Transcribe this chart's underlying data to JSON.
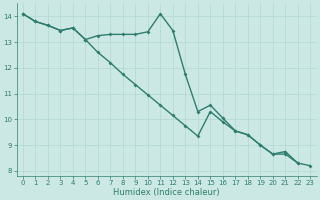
{
  "line1_x": [
    0,
    1,
    2,
    3,
    4,
    5,
    6,
    7,
    8,
    9,
    10,
    11,
    12,
    13,
    14,
    15,
    16,
    17,
    18,
    19,
    20,
    21,
    22,
    23
  ],
  "line1_y": [
    14.1,
    13.8,
    13.65,
    13.45,
    13.55,
    13.1,
    13.25,
    13.3,
    13.3,
    13.3,
    13.4,
    14.1,
    13.45,
    11.75,
    10.3,
    10.55,
    10.05,
    9.55,
    9.4,
    9.0,
    8.65,
    8.75,
    8.3,
    null
  ],
  "line2_x": [
    0,
    1,
    2,
    3,
    4,
    5,
    6,
    7,
    8,
    9,
    10,
    11,
    12,
    13,
    14,
    15,
    16,
    17,
    18,
    19,
    20,
    21,
    22,
    23
  ],
  "line2_y": [
    14.1,
    13.8,
    13.65,
    13.45,
    13.55,
    13.1,
    12.6,
    12.2,
    11.75,
    11.35,
    10.95,
    10.55,
    10.15,
    9.75,
    9.35,
    10.3,
    9.9,
    9.55,
    9.4,
    9.0,
    8.65,
    8.65,
    8.3,
    8.2
  ],
  "line_color": "#2e7d6e",
  "bg_color": "#cce8e4",
  "grid_color": "#b0d8d0",
  "xlabel": "Humidex (Indice chaleur)",
  "xlim": [
    -0.5,
    23.5
  ],
  "ylim": [
    7.8,
    14.5
  ],
  "yticks": [
    8,
    9,
    10,
    11,
    12,
    13,
    14
  ],
  "xticks": [
    0,
    1,
    2,
    3,
    4,
    5,
    6,
    7,
    8,
    9,
    10,
    11,
    12,
    13,
    14,
    15,
    16,
    17,
    18,
    19,
    20,
    21,
    22,
    23
  ],
  "marker": "D",
  "markersize": 2,
  "linewidth": 1.0,
  "title_fontsize": 7,
  "label_fontsize": 6,
  "tick_fontsize": 5
}
